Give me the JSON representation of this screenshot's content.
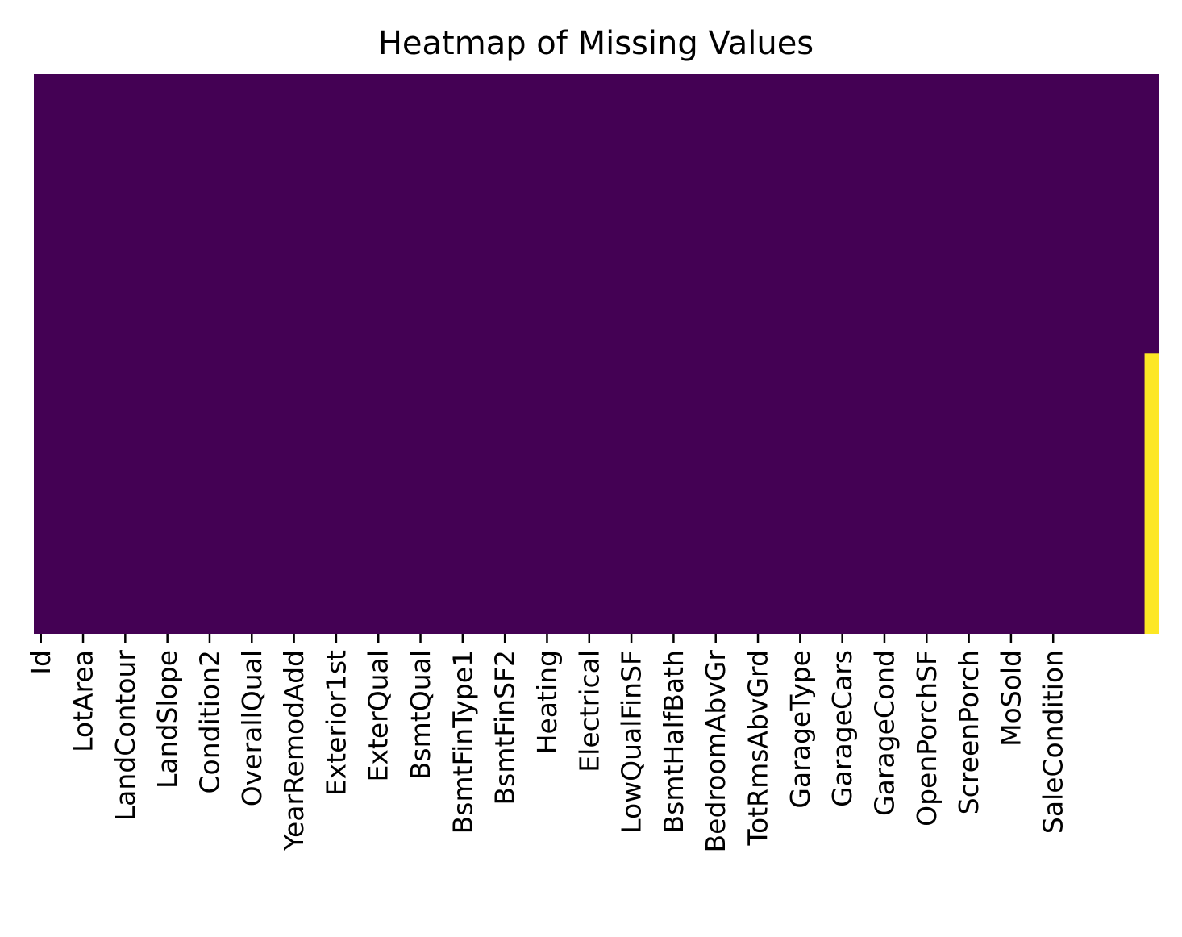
{
  "chart_data": {
    "type": "heatmap",
    "title": "Heatmap of Missing Values",
    "xlabel": "",
    "ylabel": "",
    "colormap": "viridis",
    "colors": {
      "present": "#440154",
      "missing": "#fde725",
      "background": "#ffffff"
    },
    "colorbar": false,
    "row_count": 1459,
    "column_count": 80,
    "x_tick_labels": [
      "Id",
      "LotArea",
      "LandContour",
      "LandSlope",
      "Condition2",
      "OverallQual",
      "YearRemodAdd",
      "Exterior1st",
      "ExterQual",
      "BsmtQual",
      "BsmtFinType1",
      "BsmtFinSF2",
      "Heating",
      "Electrical",
      "LowQualFinSF",
      "BsmtHalfBath",
      "BedroomAbvGr",
      "TotRmsAbvGrd",
      "GarageType",
      "GarageCars",
      "GarageCond",
      "OpenPorchSF",
      "ScreenPorch",
      "MoSold",
      "SaleCondition"
    ],
    "x_tick_every": 3,
    "missing_segments": [
      {
        "column_index": 79,
        "row_start": 728,
        "row_end": 1459
      }
    ]
  }
}
